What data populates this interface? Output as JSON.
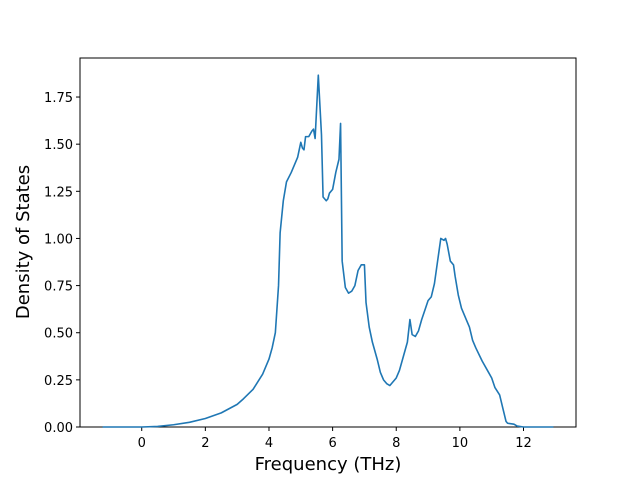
{
  "chart_data": {
    "type": "line",
    "xlabel": "Frequency (THz)",
    "ylabel": "Density of States",
    "x": [
      -1.23,
      -0.5,
      0,
      0.5,
      1,
      1.5,
      2,
      2.5,
      3,
      3.2,
      3.5,
      3.8,
      4.0,
      4.1,
      4.2,
      4.3,
      4.35,
      4.45,
      4.55,
      4.7,
      4.9,
      4.95,
      5.0,
      5.05,
      5.1,
      5.15,
      5.25,
      5.35,
      5.4,
      5.45,
      5.55,
      5.65,
      5.7,
      5.8,
      5.85,
      5.9,
      6.0,
      6.1,
      6.2,
      6.25,
      6.3,
      6.4,
      6.5,
      6.6,
      6.7,
      6.8,
      6.9,
      7.0,
      7.05,
      7.15,
      7.25,
      7.4,
      7.5,
      7.6,
      7.7,
      7.8,
      7.9,
      8.0,
      8.1,
      8.2,
      8.35,
      8.43,
      8.5,
      8.6,
      8.7,
      8.8,
      8.9,
      9.0,
      9.1,
      9.2,
      9.3,
      9.4,
      9.5,
      9.55,
      9.6,
      9.7,
      9.8,
      9.85,
      9.95,
      10.05,
      10.2,
      10.3,
      10.4,
      10.5,
      10.7,
      10.9,
      11.0,
      11.1,
      11.25,
      11.35,
      11.45,
      11.5,
      11.7,
      11.8,
      12.0,
      12.94
    ],
    "series": [
      {
        "color": "#1f77b4",
        "values": [
          0,
          0,
          0,
          0.003,
          0.012,
          0.025,
          0.045,
          0.075,
          0.12,
          0.15,
          0.2,
          0.28,
          0.36,
          0.42,
          0.5,
          0.75,
          1.03,
          1.2,
          1.3,
          1.35,
          1.43,
          1.47,
          1.51,
          1.48,
          1.47,
          1.54,
          1.54,
          1.57,
          1.58,
          1.53,
          1.866,
          1.55,
          1.22,
          1.2,
          1.21,
          1.24,
          1.26,
          1.35,
          1.42,
          1.61,
          0.88,
          0.74,
          0.71,
          0.72,
          0.75,
          0.83,
          0.86,
          0.86,
          0.66,
          0.53,
          0.45,
          0.36,
          0.29,
          0.25,
          0.23,
          0.22,
          0.24,
          0.26,
          0.3,
          0.36,
          0.45,
          0.57,
          0.49,
          0.48,
          0.51,
          0.57,
          0.62,
          0.67,
          0.69,
          0.76,
          0.88,
          1.0,
          0.99,
          1.0,
          0.97,
          0.88,
          0.86,
          0.8,
          0.7,
          0.63,
          0.57,
          0.53,
          0.46,
          0.42,
          0.35,
          0.29,
          0.26,
          0.21,
          0.17,
          0.1,
          0.03,
          0.02,
          0.015,
          0.005,
          0,
          0
        ]
      }
    ],
    "xlim": [
      -1.94,
      13.65
    ],
    "xticks": [
      0,
      2,
      4,
      6,
      8,
      10,
      12
    ],
    "ylim": [
      0,
      1.957
    ],
    "yticks": [
      {
        "value": 0,
        "label": "0.00"
      },
      {
        "value": 0.25,
        "label": "0.25"
      },
      {
        "value": 0.5,
        "label": "0.50"
      },
      {
        "value": 0.75,
        "label": "0.75"
      },
      {
        "value": 1.0,
        "label": "1.00"
      },
      {
        "value": 1.25,
        "label": "1.25"
      },
      {
        "value": 1.5,
        "label": "1.50"
      },
      {
        "value": 1.75,
        "label": "1.75"
      }
    ],
    "grid": false
  }
}
